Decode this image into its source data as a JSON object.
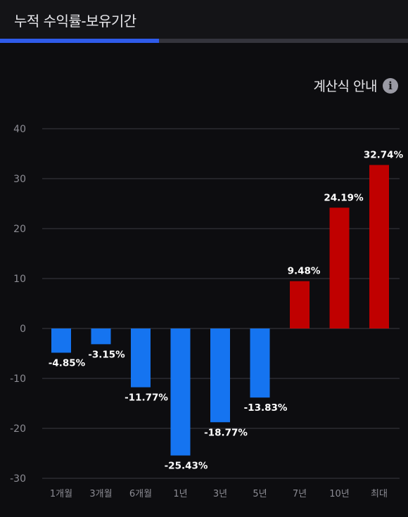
{
  "header": {
    "title": "누적 수익률-보유기간",
    "progress": 0.39
  },
  "calc_guide": {
    "label": "계산식 안내",
    "icon": "info-icon"
  },
  "colors": {
    "negative": "#1574f0",
    "positive": "#c00000",
    "grid": "#3a3a42",
    "accent": "#2f5bea"
  },
  "chart_data": {
    "type": "bar",
    "categories": [
      "1개월",
      "3개월",
      "6개월",
      "1년",
      "3년",
      "5년",
      "7년",
      "10년",
      "최대"
    ],
    "values": [
      -4.85,
      -3.15,
      -11.77,
      -25.43,
      -18.77,
      -13.83,
      9.48,
      24.19,
      32.74
    ],
    "data_labels": [
      "-4.85%",
      "-3.15%",
      "-11.77%",
      "-25.43%",
      "-18.77%",
      "-13.83%",
      "9.48%",
      "24.19%",
      "32.74%"
    ],
    "ylim": [
      -30,
      40
    ],
    "yticks": [
      "40",
      "30",
      "20",
      "10",
      "0",
      "-10",
      "-20",
      "-30"
    ],
    "grid": true
  }
}
